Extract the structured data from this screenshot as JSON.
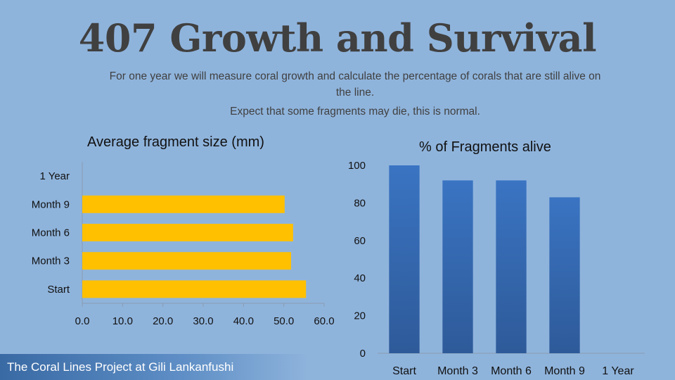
{
  "title": "407 Growth and Survival",
  "subtitle_line1": "For one year we will measure coral growth and calculate the percentage of corals that are still alive on the line.",
  "subtitle_line2": "Expect that some fragments may die, this is normal.",
  "footer": "The Coral Lines Project at Gili Lankanfushi",
  "colors": {
    "background": "#8fb4dc",
    "bar": "#ffc000",
    "column": "#3a74c2",
    "footer": "#3a6aa4"
  },
  "chart_data": [
    {
      "type": "bar",
      "orientation": "horizontal",
      "title": "Average fragment size (mm)",
      "categories": [
        "Start",
        "Month 3",
        "Month 6",
        "Month 9",
        "1 Year"
      ],
      "values": [
        55.5,
        51.8,
        52.3,
        50.2,
        null
      ],
      "xlim": [
        0,
        60
      ],
      "xticks": [
        "0.0",
        "10.0",
        "20.0",
        "30.0",
        "40.0",
        "50.0",
        "60.0"
      ],
      "grid": false
    },
    {
      "type": "bar",
      "orientation": "vertical",
      "title": "% of Fragments alive",
      "categories": [
        "Start",
        "Month 3",
        "Month 6",
        "Month 9",
        "1 Year"
      ],
      "values": [
        100,
        92,
        92,
        83,
        null
      ],
      "ylim": [
        0,
        100
      ],
      "yticks": [
        "0",
        "20",
        "40",
        "60",
        "80",
        "100"
      ],
      "grid": false
    }
  ]
}
